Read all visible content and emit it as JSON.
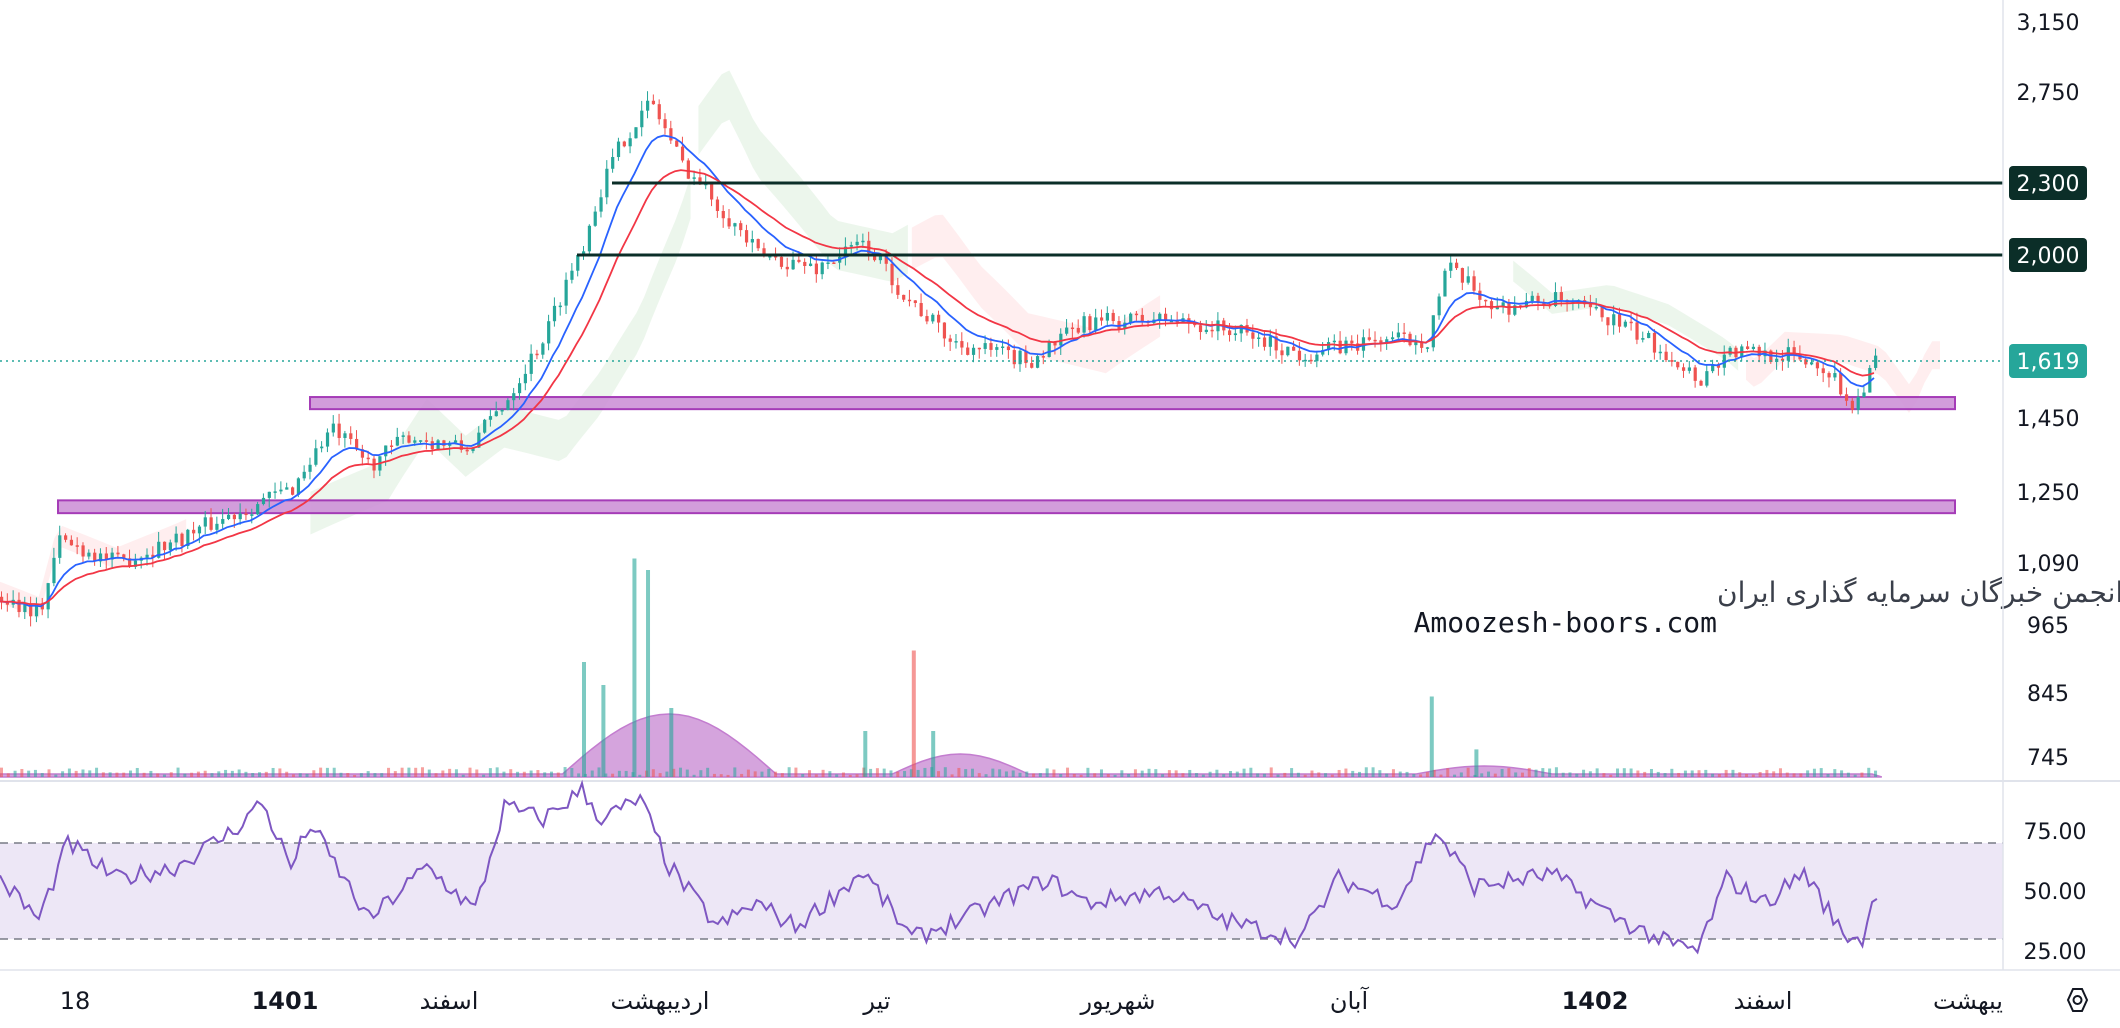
{
  "watermark": {
    "line1": "انجمن خبرگان سرمایه گذاری ایران",
    "line2": "Amoozesh-boors.com"
  },
  "price_axis_labels": [
    "3,150",
    "2,750",
    "2,300",
    "2,000",
    "1,619",
    "1,450",
    "1,250",
    "1,090",
    "965",
    "845",
    "745"
  ],
  "rsi_axis_labels": [
    "75.00",
    "50.00",
    "25.00"
  ],
  "time_axis_labels": [
    {
      "text": "18",
      "bold": false
    },
    {
      "text": "1401",
      "bold": true
    },
    {
      "text": "اسفند",
      "bold": false
    },
    {
      "text": "اردیبهشت",
      "bold": false
    },
    {
      "text": "تیر",
      "bold": false
    },
    {
      "text": "شهریور",
      "bold": false
    },
    {
      "text": "آبان",
      "bold": false
    },
    {
      "text": "1402",
      "bold": true
    },
    {
      "text": "اسفند",
      "bold": false
    },
    {
      "text": "یبهشت",
      "bold": false
    }
  ],
  "settings_icon": "hexagon-settings-icon",
  "colors": {
    "up": "#26a69a",
    "down": "#ef5350",
    "ema_fast": "#2962ff",
    "ema_slow": "#f23645",
    "zone_fill": "#ce93d8",
    "zone_border": "#9c27b0",
    "rsi": "#7e57c2",
    "rsi_band": "#ede7f6",
    "level_line": "#0b2e28",
    "last_price": "#26a69a"
  },
  "chart_data": [
    {
      "type": "candlestick",
      "title": "",
      "x_periods": [
        "18",
        "1401",
        "اسفند",
        "اردیبهشت",
        "تیر",
        "شهریور",
        "آبان",
        "1402",
        "اسفند",
        "یبهشت"
      ],
      "y_scale": "log",
      "ylim": [
        700,
        3200
      ],
      "y_ticks": [
        3150,
        2750,
        2300,
        2000,
        1619,
        1450,
        1250,
        1090,
        965,
        845,
        745
      ],
      "horizontal_levels": [
        2300,
        2000
      ],
      "last_price": 1619,
      "support_zones": [
        {
          "from": 1475,
          "to": 1510
        },
        {
          "from": 1200,
          "to": 1230
        }
      ],
      "close_path": [
        {
          "x": 0,
          "y": 1020
        },
        {
          "x": 0.02,
          "y": 990
        },
        {
          "x": 0.03,
          "y": 1140
        },
        {
          "x": 0.06,
          "y": 1090
        },
        {
          "x": 0.09,
          "y": 1140
        },
        {
          "x": 0.12,
          "y": 1200
        },
        {
          "x": 0.15,
          "y": 1260
        },
        {
          "x": 0.17,
          "y": 1420
        },
        {
          "x": 0.19,
          "y": 1320
        },
        {
          "x": 0.21,
          "y": 1400
        },
        {
          "x": 0.24,
          "y": 1360
        },
        {
          "x": 0.26,
          "y": 1500
        },
        {
          "x": 0.28,
          "y": 1700
        },
        {
          "x": 0.3,
          "y": 2050
        },
        {
          "x": 0.31,
          "y": 2300
        },
        {
          "x": 0.32,
          "y": 2500
        },
        {
          "x": 0.335,
          "y": 2700
        },
        {
          "x": 0.35,
          "y": 2400
        },
        {
          "x": 0.37,
          "y": 2200
        },
        {
          "x": 0.39,
          "y": 2000
        },
        {
          "x": 0.42,
          "y": 1950
        },
        {
          "x": 0.445,
          "y": 2050
        },
        {
          "x": 0.465,
          "y": 1850
        },
        {
          "x": 0.49,
          "y": 1680
        },
        {
          "x": 0.53,
          "y": 1620
        },
        {
          "x": 0.56,
          "y": 1750
        },
        {
          "x": 0.6,
          "y": 1760
        },
        {
          "x": 0.635,
          "y": 1720
        },
        {
          "x": 0.67,
          "y": 1640
        },
        {
          "x": 0.71,
          "y": 1690
        },
        {
          "x": 0.735,
          "y": 1690
        },
        {
          "x": 0.745,
          "y": 1950
        },
        {
          "x": 0.77,
          "y": 1800
        },
        {
          "x": 0.8,
          "y": 1830
        },
        {
          "x": 0.83,
          "y": 1760
        },
        {
          "x": 0.86,
          "y": 1640
        },
        {
          "x": 0.875,
          "y": 1560
        },
        {
          "x": 0.89,
          "y": 1650
        },
        {
          "x": 0.92,
          "y": 1640
        },
        {
          "x": 0.94,
          "y": 1600
        },
        {
          "x": 0.955,
          "y": 1480
        },
        {
          "x": 0.965,
          "y": 1619
        }
      ]
    },
    {
      "type": "bar",
      "title": "",
      "ylim": [
        0,
        1
      ],
      "values_relative": [
        {
          "x": 0.3,
          "v": 0.5
        },
        {
          "x": 0.31,
          "v": 0.4
        },
        {
          "x": 0.326,
          "v": 0.95
        },
        {
          "x": 0.333,
          "v": 0.9
        },
        {
          "x": 0.345,
          "v": 0.3
        },
        {
          "x": 0.445,
          "v": 0.2
        },
        {
          "x": 0.47,
          "v": 0.55
        },
        {
          "x": 0.48,
          "v": 0.2
        },
        {
          "x": 0.737,
          "v": 0.35
        },
        {
          "x": 0.76,
          "v": 0.12
        }
      ]
    },
    {
      "type": "line",
      "title": "",
      "ylim": [
        20,
        95
      ],
      "y_ticks": [
        75,
        50,
        25
      ],
      "bands": [
        70,
        30
      ],
      "values": [
        {
          "x": 0,
          "y": 55
        },
        {
          "x": 0.02,
          "y": 38
        },
        {
          "x": 0.035,
          "y": 70
        },
        {
          "x": 0.06,
          "y": 55
        },
        {
          "x": 0.09,
          "y": 60
        },
        {
          "x": 0.12,
          "y": 75
        },
        {
          "x": 0.135,
          "y": 87
        },
        {
          "x": 0.15,
          "y": 60
        },
        {
          "x": 0.16,
          "y": 78
        },
        {
          "x": 0.19,
          "y": 38
        },
        {
          "x": 0.22,
          "y": 60
        },
        {
          "x": 0.245,
          "y": 42
        },
        {
          "x": 0.26,
          "y": 85
        },
        {
          "x": 0.28,
          "y": 80
        },
        {
          "x": 0.3,
          "y": 92
        },
        {
          "x": 0.31,
          "y": 80
        },
        {
          "x": 0.33,
          "y": 88
        },
        {
          "x": 0.345,
          "y": 60
        },
        {
          "x": 0.37,
          "y": 35
        },
        {
          "x": 0.39,
          "y": 45
        },
        {
          "x": 0.41,
          "y": 35
        },
        {
          "x": 0.445,
          "y": 58
        },
        {
          "x": 0.47,
          "y": 30
        },
        {
          "x": 0.5,
          "y": 40
        },
        {
          "x": 0.54,
          "y": 55
        },
        {
          "x": 0.56,
          "y": 45
        },
        {
          "x": 0.6,
          "y": 50
        },
        {
          "x": 0.63,
          "y": 38
        },
        {
          "x": 0.67,
          "y": 30
        },
        {
          "x": 0.69,
          "y": 55
        },
        {
          "x": 0.72,
          "y": 45
        },
        {
          "x": 0.74,
          "y": 75
        },
        {
          "x": 0.76,
          "y": 52
        },
        {
          "x": 0.8,
          "y": 57
        },
        {
          "x": 0.83,
          "y": 40
        },
        {
          "x": 0.86,
          "y": 28
        },
        {
          "x": 0.875,
          "y": 25
        },
        {
          "x": 0.89,
          "y": 55
        },
        {
          "x": 0.91,
          "y": 45
        },
        {
          "x": 0.93,
          "y": 58
        },
        {
          "x": 0.95,
          "y": 32
        },
        {
          "x": 0.96,
          "y": 30
        },
        {
          "x": 0.968,
          "y": 52
        }
      ]
    }
  ]
}
